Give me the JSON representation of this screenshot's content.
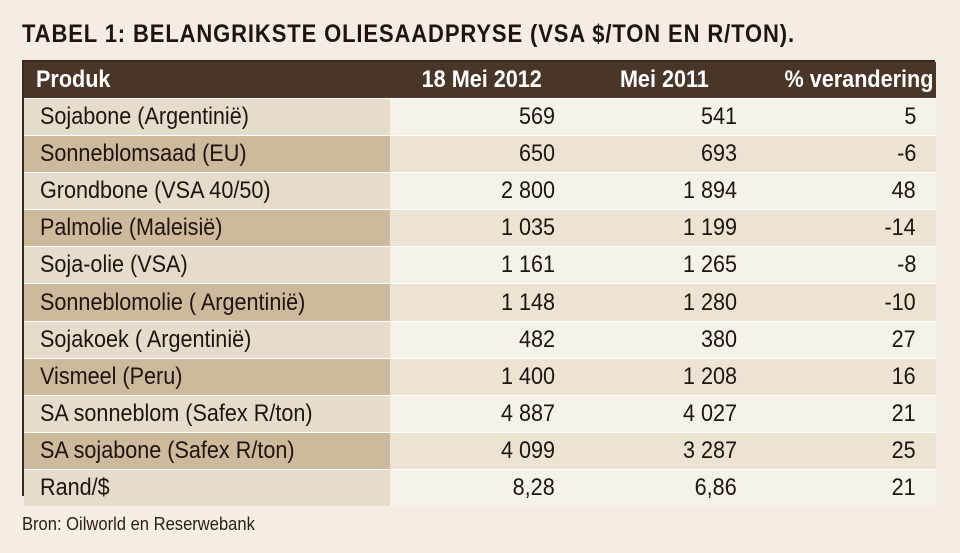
{
  "title": "TABEL 1: BELANGRIKSTE OLIESAADPRYSE (VSA $/TON EN R/TON).",
  "table": {
    "headers": [
      "Produk",
      "18 Mei 2012",
      "Mei 2011",
      "% verandering"
    ],
    "rows": [
      [
        "Sojabone (Argentinië)",
        "569",
        "541",
        "5"
      ],
      [
        "Sonneblomsaad (EU)",
        "650",
        "693",
        "-6"
      ],
      [
        "Grondbone (VSA 40/50)",
        "2 800",
        "1 894",
        "48"
      ],
      [
        "Palmolie (Maleisië)",
        "1 035",
        "1 199",
        "-14"
      ],
      [
        "Soja-olie (VSA)",
        "1 161",
        "1 265",
        "-8"
      ],
      [
        "Sonneblomolie ( Argentinië)",
        "1 148",
        "1 280",
        "-10"
      ],
      [
        "Sojakoek ( Argentinië)",
        "482",
        "380",
        "27"
      ],
      [
        "Vismeel (Peru)",
        "1 400",
        "1 208",
        "16"
      ],
      [
        "SA sonneblom (Safex R/ton)",
        "4 887",
        "4 027",
        "21"
      ],
      [
        "SA sojabone (Safex R/ton)",
        "4 099",
        "3 287",
        "25"
      ],
      [
        "Rand/$",
        "8,28",
        "6,86",
        "21"
      ]
    ]
  },
  "source": "Bron: Oilworld en Reserwebank",
  "colors": {
    "header_bg": "#4a3628",
    "name_dark": "#cdb99c",
    "name_light": "#e6dccb",
    "value_dark": "#ece3d3",
    "value_light": "#f7f2e9",
    "page_bg": "#f3ede3"
  }
}
